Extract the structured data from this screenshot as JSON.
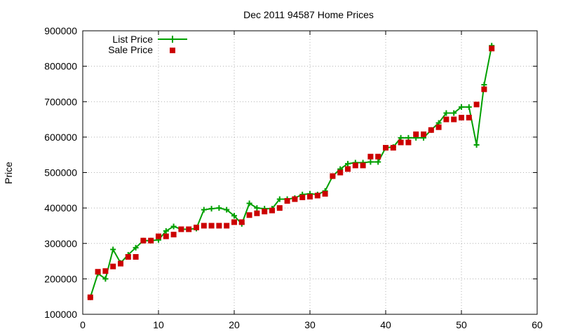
{
  "chart_data": {
    "type": "line",
    "title": "Dec 2011 94587 Home Prices",
    "xlabel": "",
    "ylabel": "Price",
    "xlim": [
      0,
      60
    ],
    "ylim": [
      100000,
      900000
    ],
    "x_ticks": [
      "0",
      "10",
      "20",
      "30",
      "40",
      "50",
      "60"
    ],
    "y_ticks": [
      "100000",
      "200000",
      "300000",
      "400000",
      "500000",
      "600000",
      "700000",
      "800000",
      "900000"
    ],
    "grid": true,
    "legend_position": "top-left",
    "colors": {
      "list": "#00a000",
      "sale": "#cc0000"
    },
    "series": [
      {
        "name": "List Price",
        "style": "line-with-plus-markers",
        "x": [
          1,
          2,
          3,
          4,
          5,
          6,
          7,
          8,
          9,
          10,
          11,
          12,
          13,
          14,
          15,
          16,
          17,
          18,
          19,
          20,
          21,
          22,
          23,
          24,
          25,
          26,
          27,
          28,
          29,
          30,
          31,
          32,
          33,
          34,
          35,
          36,
          37,
          38,
          39,
          40,
          41,
          42,
          43,
          44,
          45,
          46,
          47,
          48,
          49,
          50,
          51,
          52,
          53,
          54
        ],
        "y": [
          148000,
          215000,
          200000,
          283000,
          245000,
          268000,
          288000,
          308000,
          308000,
          310000,
          335000,
          348000,
          340000,
          340000,
          342000,
          395000,
          398000,
          400000,
          395000,
          378000,
          355000,
          413000,
          400000,
          398000,
          398000,
          425000,
          425000,
          428000,
          438000,
          440000,
          438000,
          448000,
          490000,
          510000,
          525000,
          528000,
          528000,
          530000,
          530000,
          570000,
          572000,
          598000,
          598000,
          598000,
          598000,
          620000,
          640000,
          668000,
          668000,
          685000,
          685000,
          578000,
          748000,
          858000
        ]
      },
      {
        "name": "Sale Price",
        "style": "square-markers",
        "x": [
          1,
          2,
          3,
          4,
          5,
          6,
          7,
          8,
          9,
          10,
          11,
          12,
          13,
          14,
          15,
          16,
          17,
          18,
          19,
          20,
          21,
          22,
          23,
          24,
          25,
          26,
          27,
          28,
          29,
          30,
          31,
          32,
          33,
          34,
          35,
          36,
          37,
          38,
          39,
          40,
          41,
          42,
          43,
          44,
          45,
          46,
          47,
          48,
          49,
          50,
          51,
          52,
          53,
          54
        ],
        "y": [
          148000,
          220000,
          222000,
          235000,
          243000,
          262000,
          262000,
          308000,
          308000,
          320000,
          320000,
          325000,
          340000,
          340000,
          345000,
          350000,
          350000,
          350000,
          350000,
          360000,
          360000,
          380000,
          385000,
          390000,
          393000,
          400000,
          420000,
          425000,
          430000,
          432000,
          435000,
          440000,
          490000,
          500000,
          510000,
          520000,
          520000,
          545000,
          545000,
          570000,
          570000,
          585000,
          585000,
          608000,
          608000,
          620000,
          628000,
          650000,
          650000,
          655000,
          655000,
          692000,
          735000,
          850000
        ]
      }
    ]
  }
}
